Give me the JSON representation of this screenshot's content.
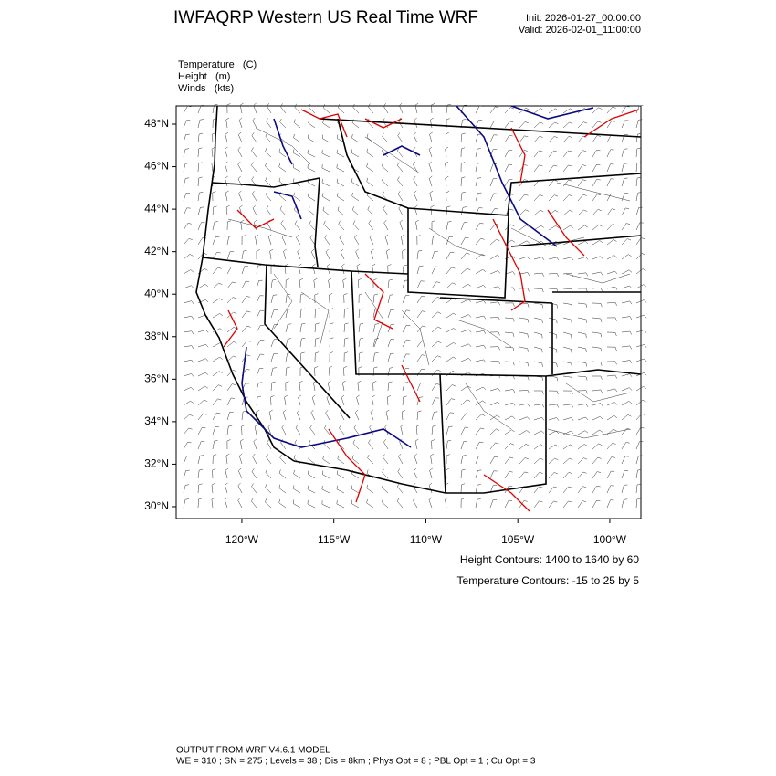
{
  "chart_data": {
    "type": "map",
    "title": "IWFAQRP Western US Real Time WRF",
    "init": "Init: 2026-01-27_00:00:00",
    "valid": "Valid: 2026-02-01_11:00:00",
    "fields": [
      "Temperature   (C)",
      "Height   (m)",
      "Winds   (kts)"
    ],
    "xlim": [
      -123.57,
      -98.31
    ],
    "ylim": [
      29.44,
      48.86
    ],
    "xticks": [
      {
        "value": -120,
        "label": "120°W"
      },
      {
        "value": -115,
        "label": "115°W"
      },
      {
        "value": -110,
        "label": "110°W"
      },
      {
        "value": -105,
        "label": "105°W"
      },
      {
        "value": -100,
        "label": "100°W"
      }
    ],
    "yticks": [
      {
        "value": 48,
        "label": "48°N"
      },
      {
        "value": 46,
        "label": "46°N"
      },
      {
        "value": 44,
        "label": "44°N"
      },
      {
        "value": 42,
        "label": "42°N"
      },
      {
        "value": 40,
        "label": "40°N"
      },
      {
        "value": 38,
        "label": "38°N"
      },
      {
        "value": 36,
        "label": "36°N"
      },
      {
        "value": 34,
        "label": "34°N"
      },
      {
        "value": 32,
        "label": "32°N"
      },
      {
        "value": 30,
        "label": "30°N"
      }
    ],
    "contour_notes": [
      {
        "text": "Height Contours: 1400 to 1640 by 60",
        "color": "#0a0a80"
      },
      {
        "text": "Temperature Contours: -15 to 25 by 5",
        "color": "#e00000"
      }
    ],
    "footer": [
      "OUTPUT FROM WRF V4.6.1 MODEL",
      "WE = 310 ; SN = 275 ; Levels = 38 ; Dis = 8km ; Phys Opt = 8 ; PBL Opt = 1 ; Cu Opt = 3"
    ]
  }
}
